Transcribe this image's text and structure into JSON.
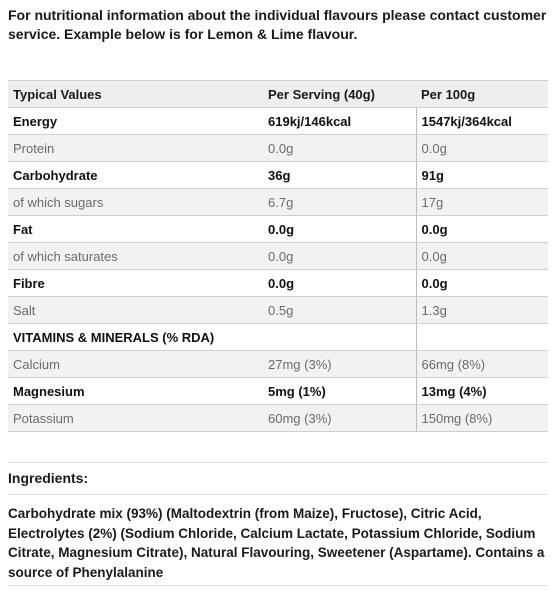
{
  "intro": "For nutritional information about the individual flavours please contact customer service. Example below is for Lemon & Lime flavour.",
  "table": {
    "headers": [
      "Typical Values",
      "Per Serving (40g)",
      "Per 100g"
    ],
    "rows": [
      {
        "label": "Energy",
        "serving": "619kj/146kcal",
        "per100": "1547kj/364kcal"
      },
      {
        "label": "Protein",
        "serving": "0.0g",
        "per100": "0.0g"
      },
      {
        "label": "Carbohydrate",
        "serving": "36g",
        "per100": "91g"
      },
      {
        "label": "of which sugars",
        "serving": "6.7g",
        "per100": "17g"
      },
      {
        "label": "Fat",
        "serving": "0.0g",
        "per100": "0.0g"
      },
      {
        "label": "of which saturates",
        "serving": "0.0g",
        "per100": "0.0g"
      },
      {
        "label": "Fibre",
        "serving": "0.0g",
        "per100": "0.0g"
      },
      {
        "label": "Salt",
        "serving": "0.5g",
        "per100": "1.3g"
      },
      {
        "label": "VITAMINS & MINERALS (% RDA)",
        "serving": "",
        "per100": ""
      },
      {
        "label": "Calcium",
        "serving": "27mg (3%)",
        "per100": "66mg (8%)"
      },
      {
        "label": "Magnesium",
        "serving": "5mg (1%)",
        "per100": "13mg (4%)"
      },
      {
        "label": "Potassium",
        "serving": "60mg (3%)",
        "per100": "150mg (8%)"
      }
    ]
  },
  "ingredients": {
    "title": "Ingredients:",
    "text": "Carbohydrate mix (93%) (Maltodextrin (from Maize), Fructose), Citric Acid, Electrolytes (2%) (Sodium Chloride, Calcium Lactate, Potassium Chloride, Sodium Citrate, Magnesium Citrate), Natural Flavouring, Sweetener (Aspartame). Contains a source of Phenylalanine"
  }
}
